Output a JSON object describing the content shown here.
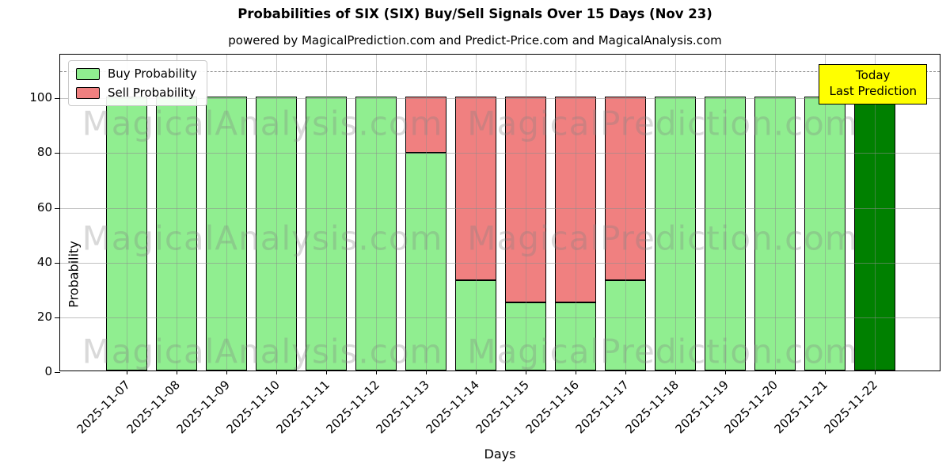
{
  "title": "Probabilities of SIX (SIX) Buy/Sell Signals Over 15 Days (Nov 23)",
  "subtitle": "powered by MagicalPrediction.com and Predict-Price.com and MagicalAnalysis.com",
  "legend": {
    "items": [
      {
        "label": "Buy Probability",
        "color": "#90EE90"
      },
      {
        "label": "Sell Probability",
        "color": "#F08080"
      }
    ]
  },
  "annotation_box": {
    "line1": "Today",
    "line2": "Last Prediction",
    "bg_color": "#FFFF00"
  },
  "watermarks": {
    "left": "MagicalAnalysis.com",
    "right": "MagicalPrediction.com"
  },
  "chart_data": {
    "type": "bar",
    "stacked": true,
    "title": "Probabilities of SIX (SIX) Buy/Sell Signals Over 15 Days (Nov 23)",
    "xlabel": "Days",
    "ylabel": "Probability",
    "categories": [
      "2025-11-07",
      "2025-11-08",
      "2025-11-09",
      "2025-11-10",
      "2025-11-11",
      "2025-11-12",
      "2025-11-13",
      "2025-11-14",
      "2025-11-15",
      "2025-11-16",
      "2025-11-17",
      "2025-11-18",
      "2025-11-19",
      "2025-11-20",
      "2025-11-21",
      "2025-11-22"
    ],
    "series": [
      {
        "name": "Buy Probability",
        "color": "#90EE90",
        "values": [
          100,
          100,
          100,
          100,
          100,
          100,
          79.5,
          33,
          25,
          25,
          33,
          100,
          100,
          100,
          100,
          100
        ]
      },
      {
        "name": "Sell Probability",
        "color": "#F08080",
        "values": [
          0,
          0,
          0,
          0,
          0,
          0,
          20.5,
          67,
          75,
          75,
          67,
          0,
          0,
          0,
          0,
          0
        ]
      }
    ],
    "today_bar": {
      "index": 15,
      "category": "2025-11-22",
      "color": "#008000"
    },
    "bar_edge_color": "#000000",
    "yticks": [
      0,
      20,
      40,
      60,
      80,
      100
    ],
    "ylim": [
      0,
      116
    ],
    "dashed_line_y": 110,
    "grid": true,
    "legend_position": "upper left"
  }
}
